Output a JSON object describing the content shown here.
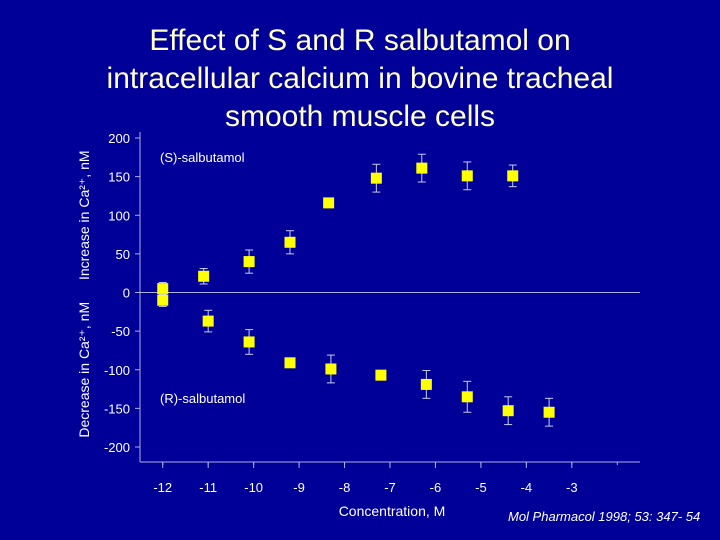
{
  "slide": {
    "title_lines": [
      "Effect of S and R salbutamol on",
      "intracellular calcium in bovine tracheal",
      "smooth muscle cells"
    ],
    "citation": "Mol Pharmacol 1998; 53: 347- 54"
  },
  "chart_data": {
    "type": "scatter",
    "xlabel": "Concentration, M",
    "ylabel_lines": [
      "Decrease in Ca²⁺, nM",
      "Increase in Ca²⁺, nM"
    ],
    "xlim": [
      -12.5,
      -1.5
    ],
    "ylim": [
      -200,
      200
    ],
    "x_ticks": [
      -12,
      -11,
      -10,
      -9,
      -8,
      -7,
      -6,
      -5,
      -4,
      -3
    ],
    "y_ticks": [
      200,
      150,
      100,
      50,
      0,
      -50,
      -100,
      -150,
      -200
    ],
    "colors": {
      "marker": "#ffff00",
      "axis": "#aab0e0",
      "error": "#c8cce8"
    },
    "series": [
      {
        "name": "(S)-salbutamol",
        "points": [
          {
            "x": -12,
            "y": 5,
            "err": 8
          },
          {
            "x": -11.1,
            "y": 21,
            "err": 10
          },
          {
            "x": -10.1,
            "y": 40,
            "err": 15
          },
          {
            "x": -9.2,
            "y": 65,
            "err": 15
          },
          {
            "x": -8.35,
            "y": 116,
            "err": 3
          },
          {
            "x": -7.3,
            "y": 148,
            "err": 18
          },
          {
            "x": -6.3,
            "y": 161,
            "err": 18
          },
          {
            "x": -5.3,
            "y": 151,
            "err": 18
          },
          {
            "x": -4.3,
            "y": 151,
            "err": 14
          }
        ]
      },
      {
        "name": "(R)-salbutamol",
        "points": [
          {
            "x": -12,
            "y": -10,
            "err": 8
          },
          {
            "x": -11,
            "y": -37,
            "err": 14
          },
          {
            "x": -10.1,
            "y": -64,
            "err": 16
          },
          {
            "x": -9.2,
            "y": -91,
            "err": 3
          },
          {
            "x": -8.3,
            "y": -99,
            "err": 18
          },
          {
            "x": -7.2,
            "y": -107,
            "err": 3
          },
          {
            "x": -6.2,
            "y": -119,
            "err": 18
          },
          {
            "x": -5.3,
            "y": -135,
            "err": 20
          },
          {
            "x": -4.4,
            "y": -153,
            "err": 18
          },
          {
            "x": -3.5,
            "y": -155,
            "err": 18
          }
        ]
      }
    ]
  }
}
